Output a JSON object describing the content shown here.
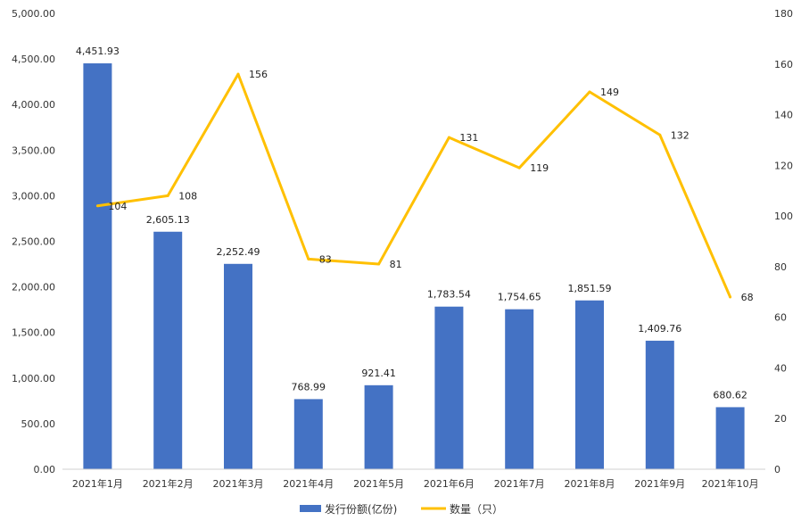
{
  "chart_data": {
    "type": "bar+line",
    "categories": [
      "2021年1月",
      "2021年2月",
      "2021年3月",
      "2021年4月",
      "2021年5月",
      "2021年6月",
      "2021年7月",
      "2021年8月",
      "2021年9月",
      "2021年10月"
    ],
    "series": [
      {
        "name": "发行份额(亿份)",
        "type": "bar",
        "axis": "left",
        "color": "#4472C4",
        "values": [
          4451.93,
          2605.13,
          2252.49,
          768.99,
          921.41,
          1783.54,
          1754.65,
          1851.59,
          1409.76,
          680.62
        ],
        "labels": [
          "4,451.93",
          "2,605.13",
          "2,252.49",
          "768.99",
          "921.41",
          "1,783.54",
          "1,754.65",
          "1,851.59",
          "1,409.76",
          "680.62"
        ]
      },
      {
        "name": "数量（只）",
        "type": "line",
        "axis": "right",
        "color": "#FFC000",
        "values": [
          104,
          108,
          156,
          83,
          81,
          131,
          119,
          149,
          132,
          68
        ],
        "labels": [
          "104",
          "108",
          "156",
          "83",
          "81",
          "131",
          "119",
          "149",
          "132",
          "68"
        ]
      }
    ],
    "y_left": {
      "range": [
        0,
        5000
      ],
      "ticks": [
        0,
        500,
        1000,
        1500,
        2000,
        2500,
        3000,
        3500,
        4000,
        4500,
        5000
      ],
      "tick_labels": [
        "0.00",
        "500.00",
        "1,000.00",
        "1,500.00",
        "2,000.00",
        "2,500.00",
        "3,000.00",
        "3,500.00",
        "4,000.00",
        "4,500.00",
        "5,000.00"
      ]
    },
    "y_right": {
      "range": [
        0,
        180
      ],
      "ticks": [
        0,
        20,
        40,
        60,
        80,
        100,
        120,
        140,
        160,
        180
      ],
      "tick_labels": [
        "0",
        "20",
        "40",
        "60",
        "80",
        "100",
        "120",
        "140",
        "160",
        "180"
      ]
    },
    "grid": false,
    "legend_position": "bottom"
  }
}
